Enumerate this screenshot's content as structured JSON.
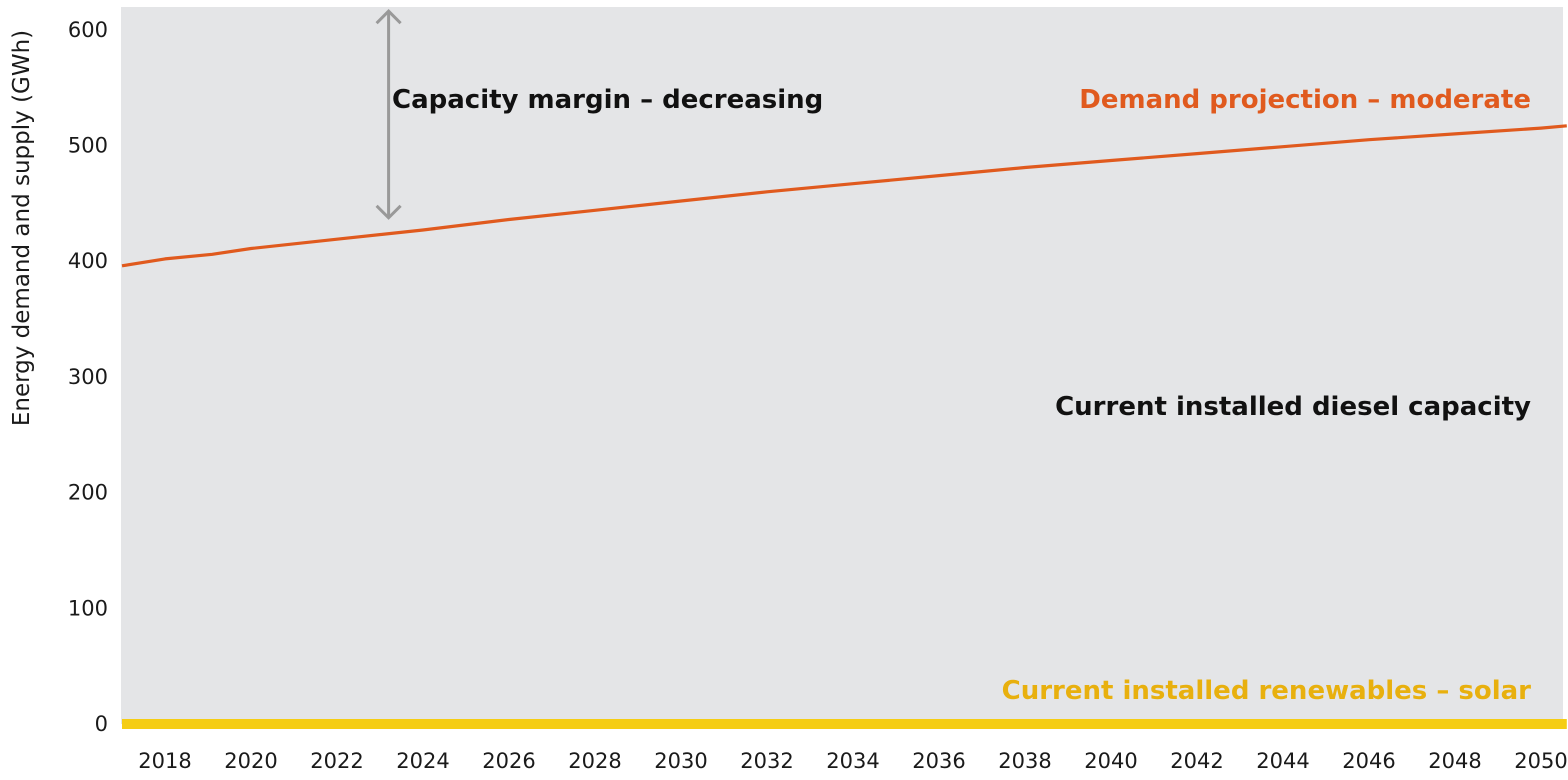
{
  "chart_data": {
    "type": "line",
    "title": "",
    "xlabel": "",
    "ylabel": "Energy demand and supply (GWh)",
    "xlim": [
      2017.0,
      2050.6
    ],
    "ylim": [
      0,
      620
    ],
    "x_ticks": [
      "2018",
      "2020",
      "2022",
      "2024",
      "2026",
      "2028",
      "2030",
      "2032",
      "2034",
      "2036",
      "2038",
      "2040",
      "2042",
      "2044",
      "2046",
      "2048",
      "2050"
    ],
    "y_ticks": [
      "0",
      "100",
      "200",
      "300",
      "400",
      "500",
      "600"
    ],
    "grid": false,
    "background": "#e4e5e7",
    "series": [
      {
        "name": "Demand projection – moderate",
        "color": "#e05a1e",
        "x": [
          2017.0,
          2018.0,
          2019.1,
          2020.0,
          2022.0,
          2024.0,
          2026.0,
          2028.0,
          2030.0,
          2032.0,
          2034.0,
          2036.0,
          2038.0,
          2040.0,
          2042.0,
          2044.0,
          2046.0,
          2048.0,
          2050.0,
          2050.6
        ],
        "values": [
          396,
          402,
          406,
          411,
          419,
          427,
          436,
          444,
          452,
          460,
          467,
          474,
          481,
          487,
          493,
          499,
          505,
          510,
          515,
          517
        ]
      },
      {
        "name": "Current installed renewables – solar",
        "color": "#f5cd14",
        "x": [
          2017.0,
          2050.6
        ],
        "values": [
          0,
          0
        ]
      }
    ],
    "annotations": [
      {
        "id": "margin",
        "text": "Capacity margin – decreasing",
        "color": "#111111",
        "arrow_color": "#999999",
        "arrow_x": 2023.2,
        "arrow_y": [
          428,
          617
        ]
      },
      {
        "id": "demand",
        "text": "Demand projection – moderate",
        "color": "#e05a1e"
      },
      {
        "id": "diesel",
        "text": "Current installed diesel capacity",
        "color": "#111111"
      },
      {
        "id": "solar",
        "text": "Current installed renewables – solar",
        "color": "#e8b00e"
      }
    ]
  }
}
